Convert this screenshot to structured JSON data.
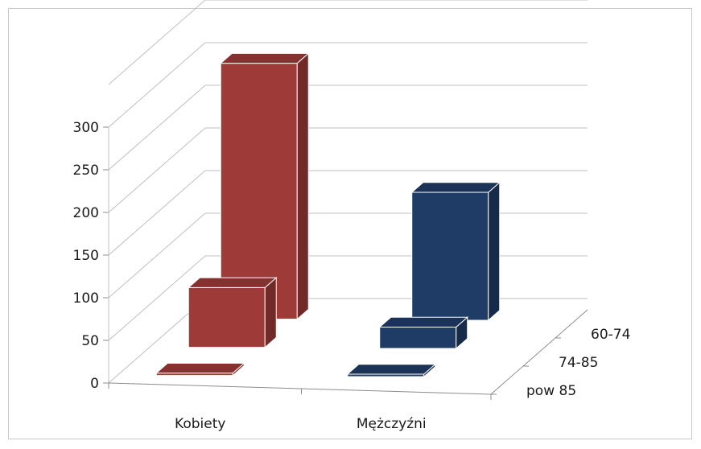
{
  "chart_data": {
    "type": "bar",
    "categories": [
      "Kobiety",
      "Mężczyźni"
    ],
    "series": [
      {
        "name": "pow 85",
        "values": [
          2,
          2
        ]
      },
      {
        "name": "74-85",
        "values": [
          70,
          25
        ]
      },
      {
        "name": "60-74",
        "values": [
          300,
          150
        ]
      }
    ],
    "ylim": [
      0,
      300
    ],
    "yticks": [
      0,
      50,
      100,
      150,
      200,
      250,
      300
    ],
    "grid": true,
    "three_d": true,
    "colors": {
      "Kobiety": "#9e3a37",
      "Mężczyźni": "#1f3c66"
    }
  }
}
